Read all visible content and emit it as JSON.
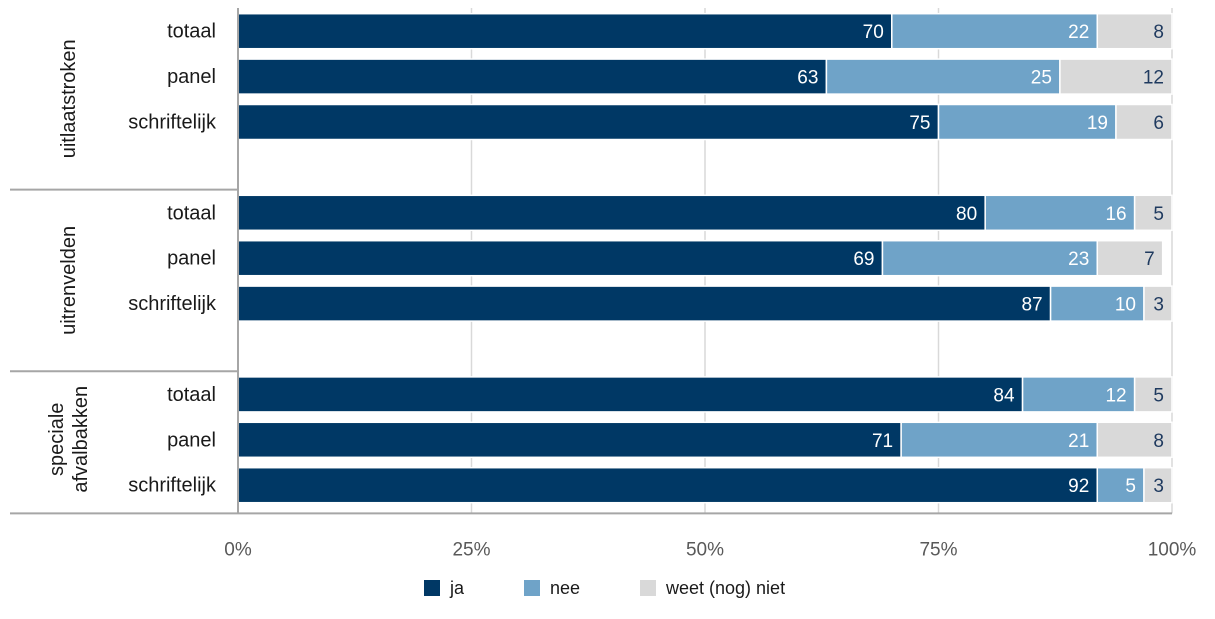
{
  "chart_data": {
    "type": "bar",
    "orientation": "horizontal",
    "stacked": true,
    "percent": true,
    "groups": [
      {
        "name": "uitlaatstroken",
        "lines": [
          "uitlaatstroken"
        ],
        "categories": [
          "totaal",
          "panel",
          "schriftelijk"
        ],
        "values": {
          "ja": [
            70,
            63,
            75
          ],
          "nee": [
            22,
            25,
            19
          ],
          "weet": [
            8,
            12,
            6
          ]
        }
      },
      {
        "name": "uitrenvelden",
        "lines": [
          "uitrenvelden"
        ],
        "categories": [
          "totaal",
          "panel",
          "schriftelijk"
        ],
        "values": {
          "ja": [
            80,
            69,
            87
          ],
          "nee": [
            16,
            23,
            10
          ],
          "weet": [
            5,
            7,
            3
          ]
        }
      },
      {
        "name": "speciale afvalbakken",
        "lines": [
          "speciale",
          "afvalbakken"
        ],
        "categories": [
          "totaal",
          "panel",
          "schriftelijk"
        ],
        "values": {
          "ja": [
            84,
            71,
            92
          ],
          "nee": [
            12,
            21,
            5
          ],
          "weet": [
            5,
            8,
            3
          ]
        }
      }
    ],
    "series": [
      {
        "key": "ja",
        "name": "ja",
        "color": "#003865",
        "label_color": "#ffffff"
      },
      {
        "key": "nee",
        "name": "nee",
        "color": "#6fa3c8",
        "label_color": "#ffffff"
      },
      {
        "key": "weet",
        "name": "weet (nog) niet",
        "color": "#d9d9d9",
        "label_color": "#1f3a5f"
      }
    ],
    "xlim": [
      0,
      100
    ],
    "xticks": [
      0,
      25,
      50,
      75,
      100
    ],
    "xtick_labels": [
      "0%",
      "25%",
      "50%",
      "75%",
      "100%"
    ],
    "grid": true,
    "legend_position": "bottom",
    "title": "",
    "xlabel": "",
    "ylabel": ""
  }
}
